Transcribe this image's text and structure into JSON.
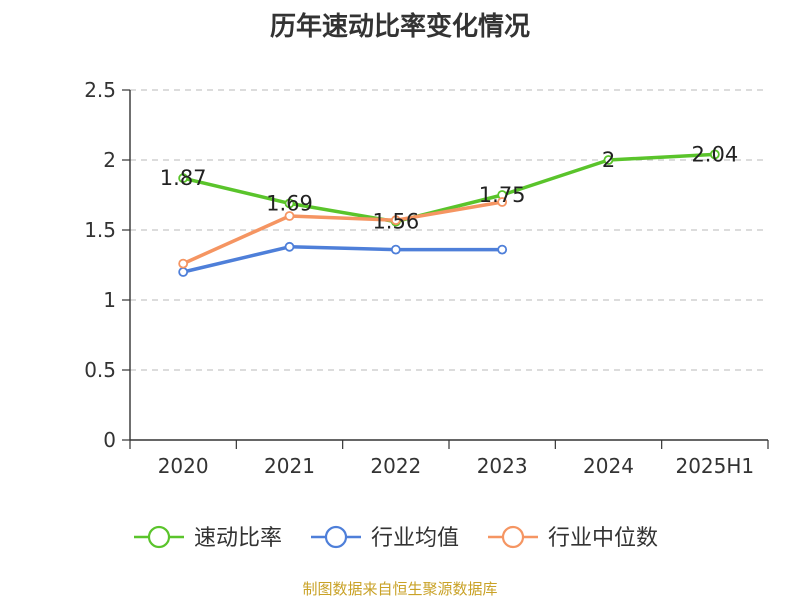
{
  "header": {
    "title": "历年速动比率变化情况"
  },
  "footer": {
    "source": "制图数据来自恒生聚源数据库"
  },
  "chart_data": {
    "type": "line",
    "title": "历年速动比率变化情况",
    "categories": [
      "2020",
      "2021",
      "2022",
      "2023",
      "2024",
      "2025H1"
    ],
    "ylim": [
      0,
      2.5
    ],
    "yticks": [
      "0",
      "0.5",
      "1",
      "1.5",
      "2",
      "2.5"
    ],
    "grid": true,
    "legend_position": "bottom",
    "series": [
      {
        "name": "速动比率",
        "color": "#5ac42b",
        "values": [
          1.87,
          1.69,
          1.56,
          1.75,
          2.0,
          2.04
        ],
        "labels": [
          "1.87",
          "1.69",
          "1.56",
          "1.75",
          "2",
          "2.04"
        ]
      },
      {
        "name": "行业均值",
        "color": "#4e7fd9",
        "values": [
          1.2,
          1.38,
          1.36,
          1.36,
          null,
          null
        ]
      },
      {
        "name": "行业中位数",
        "color": "#f59562",
        "values": [
          1.26,
          1.6,
          1.57,
          1.7,
          null,
          null
        ]
      }
    ]
  }
}
